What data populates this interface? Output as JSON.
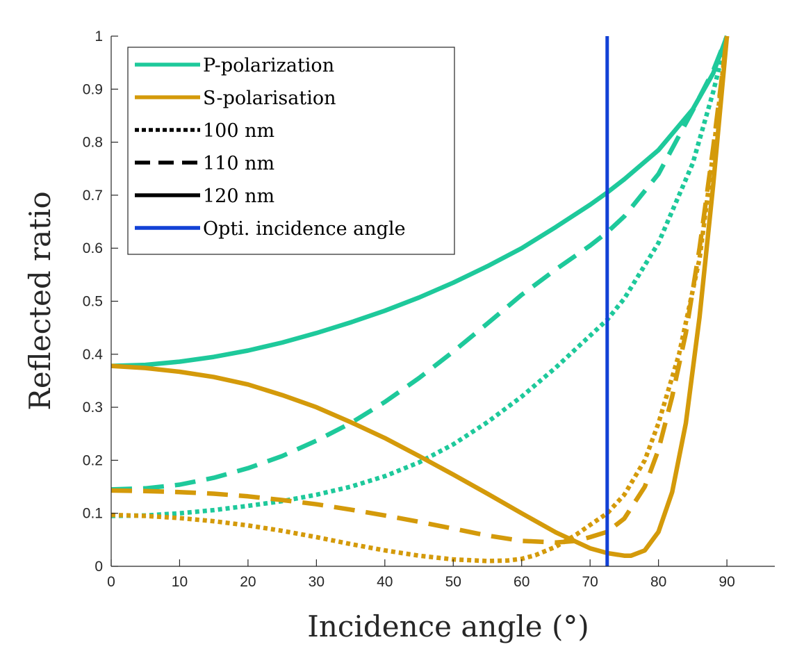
{
  "chart_data": {
    "type": "line",
    "title": "",
    "xlabel": "Incidence angle (°)",
    "ylabel": "Reflected ratio",
    "xlim": [
      0,
      97
    ],
    "ylim": [
      0,
      1
    ],
    "xticks": [
      0,
      10,
      20,
      30,
      40,
      50,
      60,
      70,
      80,
      90
    ],
    "yticks": [
      0,
      0.1,
      0.2,
      0.3,
      0.4,
      0.5,
      0.6,
      0.7,
      0.8,
      0.9,
      1
    ],
    "ytick_labels": [
      "0",
      "0.1",
      "0.2",
      "0.3",
      "0.4",
      "0.5",
      "0.6",
      "0.7",
      "0.8",
      "0.9",
      "1"
    ],
    "grid": false,
    "legend_position": "top-left",
    "colors": {
      "p": "#1ec99b",
      "s": "#d49a0a",
      "opt": "#1241d6",
      "black": "#000000"
    },
    "legend": [
      {
        "label": "P-polarization",
        "style": "solid",
        "color": "#1ec99b"
      },
      {
        "label": "S-polarisation",
        "style": "solid",
        "color": "#d49a0a"
      },
      {
        "label": "100 nm",
        "style": "dotted",
        "color": "#000000"
      },
      {
        "label": "110 nm",
        "style": "dashed",
        "color": "#000000"
      },
      {
        "label": "120 nm",
        "style": "solid",
        "color": "#000000"
      },
      {
        "label": "Opti. incidence angle",
        "style": "solid",
        "color": "#1241d6"
      }
    ],
    "vertical_line": {
      "x": 72.5,
      "color": "#1241d6"
    },
    "series": [
      {
        "pol": "P",
        "thickness": "120 nm",
        "style": "solid",
        "color": "#1ec99b",
        "x": [
          0,
          5,
          10,
          15,
          20,
          25,
          30,
          35,
          40,
          45,
          50,
          55,
          60,
          65,
          70,
          72.5,
          75,
          80,
          85,
          88,
          90
        ],
        "y": [
          0.378,
          0.38,
          0.386,
          0.395,
          0.407,
          0.422,
          0.44,
          0.46,
          0.482,
          0.507,
          0.535,
          0.566,
          0.6,
          0.64,
          0.682,
          0.705,
          0.73,
          0.785,
          0.862,
          0.93,
          1.0
        ]
      },
      {
        "pol": "P",
        "thickness": "110 nm",
        "style": "dashed",
        "color": "#1ec99b",
        "x": [
          0,
          5,
          10,
          15,
          20,
          25,
          30,
          35,
          40,
          45,
          50,
          55,
          60,
          65,
          70,
          72.5,
          75,
          80,
          85,
          88,
          90
        ],
        "y": [
          0.145,
          0.147,
          0.154,
          0.167,
          0.185,
          0.208,
          0.237,
          0.27,
          0.31,
          0.355,
          0.405,
          0.458,
          0.512,
          0.56,
          0.605,
          0.63,
          0.66,
          0.74,
          0.86,
          0.935,
          1.0
        ]
      },
      {
        "pol": "P",
        "thickness": "100 nm",
        "style": "dotted",
        "color": "#1ec99b",
        "x": [
          0,
          5,
          10,
          15,
          20,
          25,
          30,
          35,
          40,
          45,
          50,
          55,
          60,
          65,
          70,
          72.5,
          75,
          80,
          85,
          88,
          90
        ],
        "y": [
          0.095,
          0.096,
          0.1,
          0.106,
          0.114,
          0.123,
          0.135,
          0.15,
          0.17,
          0.196,
          0.23,
          0.272,
          0.32,
          0.375,
          0.435,
          0.465,
          0.505,
          0.61,
          0.76,
          0.895,
          1.0
        ]
      },
      {
        "pol": "S",
        "thickness": "120 nm",
        "style": "solid",
        "color": "#d49a0a",
        "x": [
          0,
          5,
          10,
          15,
          20,
          25,
          30,
          35,
          40,
          45,
          50,
          55,
          60,
          65,
          70,
          72.5,
          75,
          76,
          78,
          80,
          82,
          84,
          86,
          88,
          90
        ],
        "y": [
          0.378,
          0.374,
          0.367,
          0.357,
          0.343,
          0.323,
          0.3,
          0.272,
          0.242,
          0.208,
          0.173,
          0.137,
          0.1,
          0.064,
          0.034,
          0.025,
          0.02,
          0.02,
          0.03,
          0.065,
          0.14,
          0.27,
          0.47,
          0.72,
          1.0
        ]
      },
      {
        "pol": "S",
        "thickness": "110 nm",
        "style": "dashed",
        "color": "#d49a0a",
        "x": [
          0,
          5,
          10,
          15,
          20,
          25,
          30,
          35,
          40,
          45,
          50,
          55,
          60,
          65,
          68,
          70,
          72.5,
          75,
          78,
          80,
          82,
          84,
          86,
          88,
          90
        ],
        "y": [
          0.143,
          0.142,
          0.14,
          0.137,
          0.132,
          0.125,
          0.117,
          0.107,
          0.096,
          0.084,
          0.071,
          0.058,
          0.048,
          0.045,
          0.048,
          0.055,
          0.065,
          0.09,
          0.15,
          0.22,
          0.32,
          0.44,
          0.6,
          0.79,
          1.0
        ]
      },
      {
        "pol": "S",
        "thickness": "100 nm",
        "style": "dotted",
        "color": "#d49a0a",
        "x": [
          0,
          5,
          10,
          15,
          20,
          25,
          30,
          35,
          40,
          45,
          50,
          55,
          58,
          60,
          62,
          65,
          68,
          70,
          72.5,
          75,
          78,
          80,
          83,
          86,
          88,
          90
        ],
        "y": [
          0.097,
          0.095,
          0.091,
          0.085,
          0.077,
          0.067,
          0.055,
          0.042,
          0.03,
          0.02,
          0.013,
          0.01,
          0.011,
          0.014,
          0.021,
          0.037,
          0.06,
          0.078,
          0.1,
          0.135,
          0.2,
          0.27,
          0.4,
          0.58,
          0.78,
          1.0
        ]
      }
    ]
  }
}
